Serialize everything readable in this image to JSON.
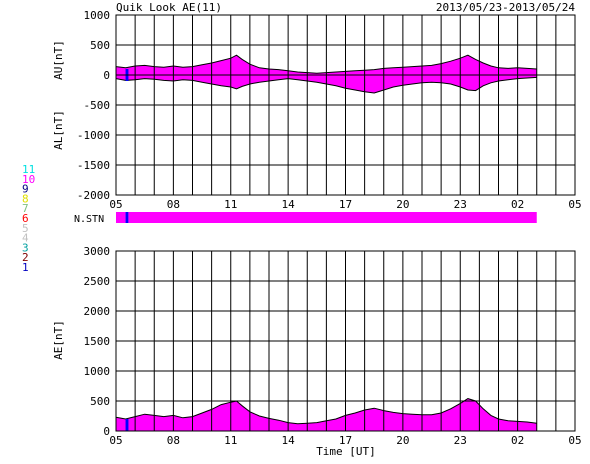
{
  "header": {
    "title": "Quik Look AE(11)",
    "date_range": "2013/05/23-2013/05/24"
  },
  "colors": {
    "fill": "#ff00ff",
    "grid": "#000000",
    "blue": "#0000ff"
  },
  "station_legend": [
    {
      "label": "11",
      "color": "#00e0e0"
    },
    {
      "label": "10",
      "color": "#ff00ff"
    },
    {
      "label": "9",
      "color": "#000080"
    },
    {
      "label": "8",
      "color": "#e0e000"
    },
    {
      "label": "7",
      "color": "#80c080"
    },
    {
      "label": "6",
      "color": "#ff0000"
    },
    {
      "label": "5",
      "color": "#c0c0c0"
    },
    {
      "label": "4",
      "color": "#c0c0c0"
    },
    {
      "label": "3",
      "color": "#00a0a0"
    },
    {
      "label": "2",
      "color": "#800000"
    },
    {
      "label": "1",
      "color": "#0000c0"
    }
  ],
  "chart_data": [
    {
      "type": "area",
      "name": "au-al-panel",
      "ylabel_top": "AU[nT]",
      "ylabel_bottom": "AL[nT]",
      "ylim": [
        -2000,
        1000
      ],
      "yticks": [
        "1000",
        "500",
        "0",
        "-500",
        "-1000",
        "-1500",
        "-2000"
      ],
      "xlim_hours": [
        5,
        29
      ],
      "xticks": [
        "05",
        "08",
        "11",
        "14",
        "17",
        "20",
        "23",
        "02",
        "05"
      ],
      "grid": true,
      "data_end_hour": 27.0,
      "au_series": {
        "x": [
          5.0,
          5.5,
          6.0,
          6.5,
          7.0,
          7.5,
          8.0,
          8.5,
          9.0,
          9.5,
          10.0,
          10.5,
          11.0,
          11.3,
          11.6,
          12.0,
          12.5,
          13.0,
          13.5,
          14.0,
          14.5,
          15.0,
          15.5,
          16.0,
          16.5,
          17.0,
          17.5,
          18.0,
          18.5,
          19.0,
          19.5,
          20.0,
          20.5,
          21.0,
          21.5,
          22.0,
          22.5,
          23.0,
          23.4,
          23.8,
          24.2,
          24.6,
          25.0,
          25.5,
          26.0,
          26.5,
          27.0
        ],
        "values": [
          140,
          120,
          150,
          160,
          140,
          130,
          150,
          130,
          140,
          170,
          200,
          240,
          280,
          330,
          260,
          180,
          120,
          100,
          90,
          70,
          50,
          40,
          30,
          40,
          50,
          60,
          70,
          80,
          90,
          110,
          120,
          130,
          140,
          150,
          160,
          190,
          230,
          280,
          330,
          260,
          200,
          150,
          120,
          110,
          120,
          110,
          100
        ]
      },
      "al_series": {
        "x": [
          5.0,
          5.5,
          6.0,
          6.5,
          7.0,
          7.5,
          8.0,
          8.5,
          9.0,
          9.5,
          10.0,
          10.5,
          11.0,
          11.3,
          11.6,
          12.0,
          12.5,
          13.0,
          13.5,
          14.0,
          14.5,
          15.0,
          15.5,
          16.0,
          16.5,
          17.0,
          17.5,
          18.0,
          18.5,
          19.0,
          19.5,
          20.0,
          20.5,
          21.0,
          21.5,
          22.0,
          22.5,
          23.0,
          23.4,
          23.8,
          24.2,
          24.6,
          25.0,
          25.5,
          26.0,
          26.5,
          27.0
        ],
        "values": [
          -60,
          -90,
          -80,
          -60,
          -70,
          -90,
          -100,
          -80,
          -90,
          -120,
          -150,
          -180,
          -200,
          -230,
          -190,
          -150,
          -120,
          -100,
          -80,
          -60,
          -80,
          -100,
          -120,
          -150,
          -180,
          -220,
          -250,
          -280,
          -300,
          -250,
          -200,
          -170,
          -150,
          -130,
          -120,
          -130,
          -150,
          -200,
          -250,
          -260,
          -180,
          -130,
          -100,
          -80,
          -60,
          -50,
          -40
        ]
      }
    },
    {
      "type": "bar",
      "name": "station-count-bar",
      "label": "N.STN",
      "xlim_hours": [
        5,
        29
      ],
      "segments": [
        {
          "start": 5.0,
          "end": 5.5,
          "color": "#ff00ff"
        },
        {
          "start": 5.5,
          "end": 5.65,
          "color": "#0000ff"
        },
        {
          "start": 5.65,
          "end": 27.0,
          "color": "#ff00ff"
        }
      ]
    },
    {
      "type": "area",
      "name": "ae-panel",
      "ylabel": "AE[nT]",
      "xlabel": "Time [UT]",
      "ylim": [
        0,
        3000
      ],
      "yticks": [
        "3000",
        "2500",
        "2000",
        "1500",
        "1000",
        "500",
        "0"
      ],
      "xlim_hours": [
        5,
        29
      ],
      "xticks": [
        "05",
        "08",
        "11",
        "14",
        "17",
        "20",
        "23",
        "02",
        "05"
      ],
      "grid": true,
      "series": {
        "x": [
          5.0,
          5.5,
          6.0,
          6.5,
          7.0,
          7.5,
          8.0,
          8.5,
          9.0,
          9.5,
          10.0,
          10.5,
          11.0,
          11.3,
          11.6,
          12.0,
          12.5,
          13.0,
          13.5,
          14.0,
          14.5,
          15.0,
          15.5,
          16.0,
          16.5,
          17.0,
          17.5,
          18.0,
          18.5,
          19.0,
          19.5,
          20.0,
          20.5,
          21.0,
          21.5,
          22.0,
          22.5,
          23.0,
          23.4,
          23.8,
          24.2,
          24.6,
          25.0,
          25.5,
          26.0,
          26.5,
          27.0
        ],
        "values": [
          230,
          200,
          240,
          280,
          260,
          240,
          260,
          220,
          240,
          300,
          360,
          440,
          480,
          500,
          420,
          320,
          250,
          210,
          180,
          140,
          120,
          130,
          140,
          170,
          200,
          260,
          300,
          350,
          380,
          340,
          310,
          290,
          280,
          270,
          270,
          300,
          370,
          460,
          540,
          500,
          370,
          260,
          200,
          170,
          160,
          150,
          130
        ]
      }
    }
  ]
}
